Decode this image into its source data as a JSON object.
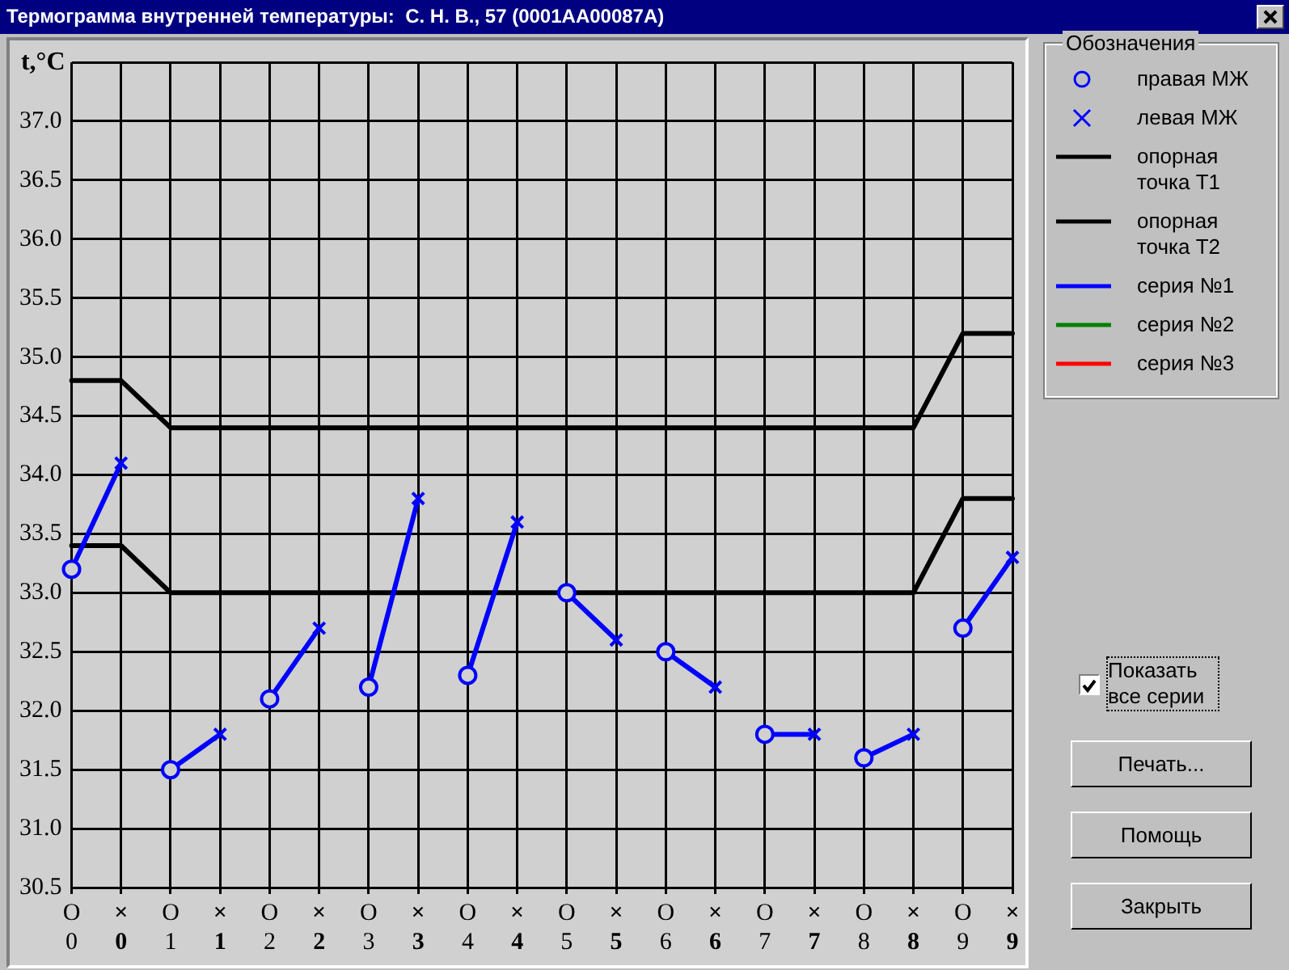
{
  "chart_data": {
    "type": "line",
    "title": "Термограмма внутренней температуры:  С. Н. В., 57 (0001АА00087А)",
    "ylabel": "t,°C",
    "legend_title": "Обозначения",
    "legend": "right",
    "grid": true,
    "categories": [
      "O\n0",
      "×\n0",
      "O\n1",
      "×\n1",
      "O\n2",
      "×\n2",
      "O\n3",
      "×\n3",
      "O\n4",
      "×\n4",
      "O\n5",
      "×\n5",
      "O\n6",
      "×\n6",
      "O\n7",
      "×\n7",
      "O\n8",
      "×\n8",
      "O\n9",
      "×\n9"
    ],
    "ylim": [
      30.5,
      37.5
    ],
    "yticks": [
      30.5,
      {
        "value": 31,
        "label": "31.0"
      },
      31.5,
      {
        "value": 32,
        "label": "32.0"
      },
      32.5,
      {
        "value": 33,
        "label": "33.0"
      },
      33.5,
      {
        "value": 34,
        "label": "34.0"
      },
      34.5,
      {
        "value": 35,
        "label": "35.0"
      },
      35.5,
      {
        "value": 36,
        "label": "36.0"
      },
      36.5,
      {
        "value": 37,
        "label": "37.0"
      },
      {
        "value": 37.5,
        "label": null
      }
    ],
    "series": [
      {
        "name": "правая МЖ",
        "type": "scatter",
        "marker": "circle",
        "color": "#0000ff",
        "values": [
          33.2,
          null,
          31.5,
          null,
          32.1,
          null,
          32.2,
          null,
          32.3,
          null,
          33.0,
          null,
          32.5,
          null,
          31.8,
          null,
          31.6,
          null,
          32.7,
          null
        ]
      },
      {
        "name": "левая МЖ",
        "type": "scatter",
        "marker": "cross",
        "color": "#0000ff",
        "values": [
          null,
          34.1,
          null,
          31.8,
          null,
          32.7,
          null,
          33.8,
          null,
          33.6,
          null,
          32.6,
          null,
          32.2,
          null,
          31.8,
          null,
          31.8,
          null,
          33.3
        ]
      },
      {
        "name": "опорная точка Т1",
        "color": "#000000",
        "values": [
          34.8,
          34.8,
          34.4,
          34.4,
          34.4,
          34.4,
          34.4,
          34.4,
          34.4,
          34.4,
          34.4,
          34.4,
          34.4,
          34.4,
          34.4,
          34.4,
          34.4,
          34.4,
          35.2,
          35.2
        ]
      },
      {
        "name": "опорная точка Т2",
        "color": "#000000",
        "values": [
          33.4,
          33.4,
          33.0,
          33.0,
          33.0,
          33.0,
          33.0,
          33.0,
          33.0,
          33.0,
          33.0,
          33.0,
          33.0,
          33.0,
          33.0,
          33.0,
          33.0,
          33.0,
          33.8,
          33.8
        ]
      },
      {
        "name": "серия №1",
        "color": "#0000ff",
        "values": [
          33.2,
          34.1,
          null,
          null,
          null,
          null,
          null,
          null,
          null,
          null,
          null,
          null,
          null,
          null,
          null,
          null,
          null,
          null,
          null,
          null
        ]
      },
      {
        "type": "line",
        "color": "#0000ff",
        "values": [
          null,
          null,
          31.5,
          31.8,
          null,
          null,
          null,
          null,
          null,
          null,
          null,
          null,
          null,
          null,
          null,
          null,
          null,
          null,
          null,
          null
        ]
      },
      {
        "type": "line",
        "color": "#0000ff",
        "values": [
          null,
          null,
          null,
          null,
          32.1,
          32.7,
          null,
          null,
          null,
          null,
          null,
          null,
          null,
          null,
          null,
          null,
          null,
          null,
          null,
          null
        ]
      },
      {
        "type": "line",
        "color": "#0000ff",
        "values": [
          null,
          null,
          null,
          null,
          null,
          null,
          32.2,
          33.8,
          null,
          null,
          null,
          null,
          null,
          null,
          null,
          null,
          null,
          null,
          null,
          null
        ]
      },
      {
        "type": "line",
        "color": "#0000ff",
        "values": [
          null,
          null,
          null,
          null,
          null,
          null,
          null,
          null,
          32.3,
          33.6,
          null,
          null,
          null,
          null,
          null,
          null,
          null,
          null,
          null,
          null
        ]
      },
      {
        "type": "line",
        "color": "#0000ff",
        "values": [
          null,
          null,
          null,
          null,
          null,
          null,
          null,
          null,
          null,
          null,
          33.0,
          32.6,
          null,
          null,
          null,
          null,
          null,
          null,
          null,
          null
        ]
      },
      {
        "type": "line",
        "color": "#0000ff",
        "values": [
          null,
          null,
          null,
          null,
          null,
          null,
          null,
          null,
          null,
          null,
          null,
          null,
          32.5,
          32.2,
          null,
          null,
          null,
          null,
          null,
          null
        ]
      },
      {
        "type": "line",
        "color": "#0000ff",
        "values": [
          null,
          null,
          null,
          null,
          null,
          null,
          null,
          null,
          null,
          null,
          null,
          null,
          null,
          null,
          31.8,
          31.8,
          null,
          null,
          null,
          null
        ]
      },
      {
        "type": "line",
        "color": "#0000ff",
        "values": [
          null,
          null,
          null,
          null,
          null,
          null,
          null,
          null,
          null,
          null,
          null,
          null,
          null,
          null,
          null,
          null,
          31.6,
          31.8,
          null,
          null
        ]
      },
      {
        "type": "line",
        "color": "#0000ff",
        "values": [
          null,
          null,
          null,
          null,
          null,
          null,
          null,
          null,
          null,
          null,
          null,
          null,
          null,
          null,
          null,
          null,
          null,
          null,
          32.7,
          33.3
        ]
      },
      {
        "name": "серия №2",
        "color": "#008000",
        "values": [
          null,
          null,
          null,
          null,
          null,
          null,
          null,
          null,
          null,
          null,
          null,
          null,
          null,
          null,
          null,
          null,
          null,
          null,
          null,
          null
        ]
      },
      {
        "name": "серия №3",
        "color": "#ff0000",
        "values": [
          null,
          null,
          null,
          null,
          null,
          null,
          null,
          null,
          null,
          null,
          null,
          null,
          null,
          null,
          null,
          null,
          null,
          null,
          null,
          null
        ]
      }
    ],
    "annotations": [
      "Показать все серии",
      "Печать...",
      "Помощь",
      "Закрыть"
    ]
  }
}
